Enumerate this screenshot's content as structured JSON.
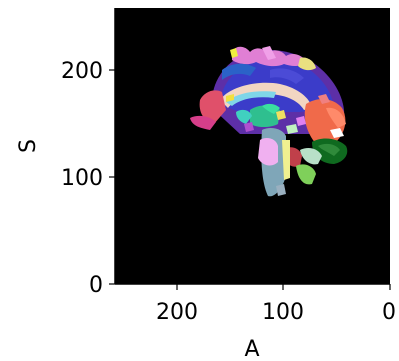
{
  "figure": {
    "xlabel": "A",
    "ylabel": "S",
    "x_ticks": [
      "200",
      "100",
      "0"
    ],
    "y_ticks": [
      "200",
      "100",
      "0"
    ],
    "x_range": [
      256,
      0
    ],
    "y_range": [
      0,
      256
    ],
    "background_color": "#000000",
    "content": "sagittal brain segmentation label map"
  }
}
